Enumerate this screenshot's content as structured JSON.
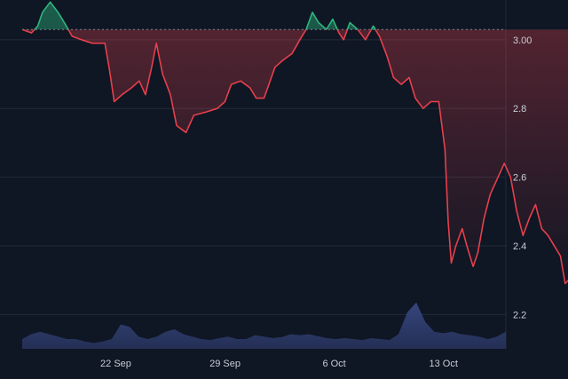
{
  "chart_data": {
    "type": "line",
    "x_tick_labels": [
      "22 Sep",
      "29 Sep",
      "6 Oct",
      "13 Oct"
    ],
    "x_tick_dates": [
      "2024-09-22",
      "2024-09-29",
      "2024-10-06",
      "2024-10-13"
    ],
    "x_start_date": "2024-09-16",
    "x_end_date": "2024-10-17",
    "ylim": [
      2.1,
      3.09
    ],
    "y_ticks": [
      2.2,
      2.4,
      2.6,
      2.8,
      3.0
    ],
    "y_tick_labels": [
      "2.2",
      "2.4",
      "2.6",
      "2.8",
      "3.00"
    ],
    "baseline": 3.03,
    "grid": true,
    "series": [
      {
        "values": [
          [
            0.0,
            3.03
          ],
          [
            0.6,
            3.02
          ],
          [
            1.0,
            3.04
          ],
          [
            1.3,
            3.08
          ],
          [
            1.8,
            3.11
          ],
          [
            2.3,
            3.08
          ],
          [
            2.7,
            3.05
          ],
          [
            3.2,
            3.01
          ],
          [
            3.8,
            3.0
          ],
          [
            4.5,
            2.99
          ],
          [
            5.3,
            2.99
          ],
          [
            5.6,
            2.91
          ],
          [
            5.9,
            2.82
          ],
          [
            6.4,
            2.84
          ],
          [
            7.0,
            2.86
          ],
          [
            7.5,
            2.88
          ],
          [
            7.9,
            2.84
          ],
          [
            8.3,
            2.92
          ],
          [
            8.6,
            2.99
          ],
          [
            9.0,
            2.9
          ],
          [
            9.5,
            2.84
          ],
          [
            9.9,
            2.75
          ],
          [
            10.5,
            2.73
          ],
          [
            11.0,
            2.78
          ],
          [
            11.8,
            2.79
          ],
          [
            12.5,
            2.8
          ],
          [
            13.0,
            2.82
          ],
          [
            13.4,
            2.87
          ],
          [
            14.0,
            2.88
          ],
          [
            14.6,
            2.86
          ],
          [
            15.0,
            2.83
          ],
          [
            15.5,
            2.83
          ],
          [
            16.2,
            2.92
          ],
          [
            16.7,
            2.94
          ],
          [
            17.3,
            2.96
          ],
          [
            17.8,
            3.0
          ],
          [
            18.2,
            3.03
          ],
          [
            18.6,
            3.08
          ],
          [
            19.0,
            3.05
          ],
          [
            19.5,
            3.03
          ],
          [
            19.9,
            3.06
          ],
          [
            20.3,
            3.02
          ],
          [
            20.6,
            3.0
          ],
          [
            21.0,
            3.05
          ],
          [
            21.5,
            3.03
          ],
          [
            22.0,
            3.0
          ],
          [
            22.5,
            3.04
          ],
          [
            22.9,
            3.01
          ],
          [
            23.4,
            2.95
          ],
          [
            23.8,
            2.89
          ],
          [
            24.3,
            2.87
          ],
          [
            24.8,
            2.89
          ],
          [
            25.2,
            2.83
          ],
          [
            25.7,
            2.8
          ],
          [
            26.2,
            2.82
          ],
          [
            26.7,
            2.82
          ],
          [
            27.1,
            2.68
          ],
          [
            27.3,
            2.47
          ],
          [
            27.5,
            2.35
          ],
          [
            27.8,
            2.4
          ],
          [
            28.2,
            2.45
          ],
          [
            28.5,
            2.4
          ],
          [
            28.9,
            2.34
          ],
          [
            29.2,
            2.38
          ],
          [
            29.6,
            2.48
          ],
          [
            30.0,
            2.55
          ],
          [
            30.5,
            2.6
          ],
          [
            30.9,
            2.64
          ],
          [
            31.3,
            2.6
          ],
          [
            31.7,
            2.5
          ],
          [
            32.1,
            2.43
          ],
          [
            32.5,
            2.48
          ],
          [
            32.9,
            2.52
          ],
          [
            33.3,
            2.45
          ],
          [
            33.7,
            2.43
          ],
          [
            34.1,
            2.4
          ],
          [
            34.5,
            2.37
          ],
          [
            34.8,
            2.29
          ],
          [
            35.0,
            2.3
          ]
        ],
        "color_below_baseline": "#e5404b",
        "color_above_baseline": "#2eb67d"
      }
    ],
    "volume": [
      0.2,
      0.3,
      0.35,
      0.3,
      0.25,
      0.2,
      0.2,
      0.15,
      0.12,
      0.15,
      0.2,
      0.5,
      0.45,
      0.25,
      0.2,
      0.25,
      0.35,
      0.4,
      0.3,
      0.25,
      0.2,
      0.18,
      0.22,
      0.25,
      0.2,
      0.2,
      0.28,
      0.25,
      0.22,
      0.24,
      0.3,
      0.28,
      0.3,
      0.26,
      0.22,
      0.2,
      0.22,
      0.2,
      0.18,
      0.22,
      0.2,
      0.18,
      0.3,
      0.75,
      0.95,
      0.55,
      0.35,
      0.32,
      0.35,
      0.3,
      0.28,
      0.25,
      0.2,
      0.25,
      0.35
    ]
  },
  "colors": {
    "background": "#0f1624",
    "grid": "#232c3b",
    "down_line": "#e5404b",
    "up_line": "#2eb67d",
    "volume_fill": "#2c3a6a"
  }
}
